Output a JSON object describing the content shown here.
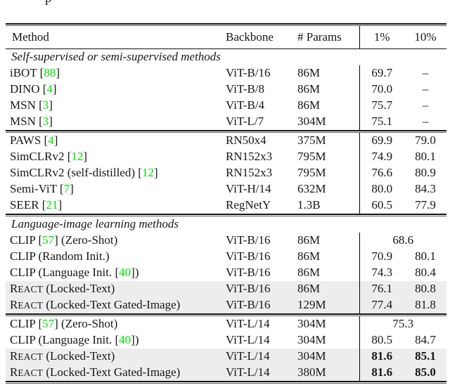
{
  "page": {
    "cropped_caption_fragment": "p"
  },
  "table": {
    "header": {
      "method": "Method",
      "backbone": "Backbone",
      "params": "# Params",
      "p1": "1%",
      "p10": "10%"
    },
    "accent_green": "#00e000",
    "highlight_bg": "#ededed",
    "blocks": [
      {
        "type": "label",
        "text": "Self-supervised or semi-supervised methods"
      },
      {
        "type": "row",
        "method": [
          {
            "t": "iBOT ["
          },
          {
            "t": "88",
            "k": "cite"
          },
          {
            "t": "]"
          }
        ],
        "backbone": "ViT-B/16",
        "params": "86M",
        "p1": "69.7",
        "p10": "–"
      },
      {
        "type": "row",
        "method": [
          {
            "t": "DINO ["
          },
          {
            "t": "4",
            "k": "cite"
          },
          {
            "t": "]"
          }
        ],
        "backbone": "ViT-B/8",
        "params": "86M",
        "p1": "70.0",
        "p10": "–"
      },
      {
        "type": "row",
        "method": [
          {
            "t": "MSN ["
          },
          {
            "t": "3",
            "k": "cite"
          },
          {
            "t": "]"
          }
        ],
        "backbone": "ViT-B/4",
        "params": "86M",
        "p1": "75.7",
        "p10": "–"
      },
      {
        "type": "row",
        "method": [
          {
            "t": "MSN ["
          },
          {
            "t": "3",
            "k": "cite"
          },
          {
            "t": "]"
          }
        ],
        "backbone": "ViT-L/7",
        "params": "304M",
        "p1": "75.1",
        "p10": "–"
      },
      {
        "type": "rule"
      },
      {
        "type": "row",
        "method": [
          {
            "t": "PAWS ["
          },
          {
            "t": "4",
            "k": "cite"
          },
          {
            "t": "]"
          }
        ],
        "backbone": "RN50x4",
        "params": "375M",
        "p1": "69.9",
        "p10": "79.0"
      },
      {
        "type": "row",
        "method": [
          {
            "t": "SimCLRv2 ["
          },
          {
            "t": "12",
            "k": "cite"
          },
          {
            "t": "]"
          }
        ],
        "backbone": "RN152x3",
        "params": "795M",
        "p1": "74.9",
        "p10": "80.1"
      },
      {
        "type": "row",
        "method": [
          {
            "t": "SimCLRv2 (self-distilled) ["
          },
          {
            "t": "12",
            "k": "cite"
          },
          {
            "t": "]"
          }
        ],
        "backbone": "RN152x3",
        "params": "795M",
        "p1": "76.6",
        "p10": "80.9"
      },
      {
        "type": "row",
        "method": [
          {
            "t": "Semi-ViT ["
          },
          {
            "t": "7",
            "k": "cite"
          },
          {
            "t": "]"
          }
        ],
        "backbone": "ViT-H/14",
        "params": "632M",
        "p1": "80.0",
        "p10": "84.3"
      },
      {
        "type": "row",
        "method": [
          {
            "t": "SEER ["
          },
          {
            "t": "21",
            "k": "cite"
          },
          {
            "t": "]"
          }
        ],
        "backbone": "RegNetY",
        "params": "1.3B",
        "p1": "60.5",
        "p10": "77.9"
      },
      {
        "type": "rule"
      },
      {
        "type": "label",
        "text": "Language-image learning methods"
      },
      {
        "type": "row",
        "merged": true,
        "method": [
          {
            "t": "CLIP ["
          },
          {
            "t": "57",
            "k": "cite"
          },
          {
            "t": "] (Zero-Shot)"
          }
        ],
        "backbone": "ViT-B/16",
        "params": "86M",
        "value": "68.6"
      },
      {
        "type": "row",
        "method": [
          {
            "t": "CLIP (Random Init.)"
          }
        ],
        "backbone": "ViT-B/16",
        "params": "86M",
        "p1": "70.9",
        "p10": "80.1"
      },
      {
        "type": "row",
        "method": [
          {
            "t": "CLIP (Language Init. ["
          },
          {
            "t": "40",
            "k": "cite"
          },
          {
            "t": "])"
          }
        ],
        "backbone": "ViT-B/16",
        "params": "86M",
        "p1": "74.3",
        "p10": "80.4"
      },
      {
        "type": "row",
        "hl": true,
        "method": [
          {
            "t": "R"
          },
          {
            "t": "EACT",
            "k": "sc"
          },
          {
            "t": " (Locked-Text)"
          }
        ],
        "backbone": "ViT-B/16",
        "params": "86M",
        "p1": "76.1",
        "p10": "80.8"
      },
      {
        "type": "row",
        "hl": true,
        "method": [
          {
            "t": "R"
          },
          {
            "t": "EACT",
            "k": "sc"
          },
          {
            "t": " (Locked-Text Gated-Image)"
          }
        ],
        "backbone": "ViT-B/16",
        "params": "129M",
        "p1": "77.4",
        "p10": "81.8"
      },
      {
        "type": "rule"
      },
      {
        "type": "row",
        "merged": true,
        "method": [
          {
            "t": "CLIP ["
          },
          {
            "t": "57",
            "k": "cite"
          },
          {
            "t": "] (Zero-Shot)"
          }
        ],
        "backbone": "ViT-L/14",
        "params": "304M",
        "value": "75.3"
      },
      {
        "type": "row",
        "method": [
          {
            "t": "CLIP (Language Init. ["
          },
          {
            "t": "40",
            "k": "cite"
          },
          {
            "t": "])"
          }
        ],
        "backbone": "ViT-L/14",
        "params": "304M",
        "p1": "80.5",
        "p10": "84.7"
      },
      {
        "type": "row",
        "hl": true,
        "bold": true,
        "method": [
          {
            "t": "R"
          },
          {
            "t": "EACT",
            "k": "sc"
          },
          {
            "t": " (Locked-Text)"
          }
        ],
        "backbone": "ViT-L/14",
        "params": "304M",
        "p1": "81.6",
        "p10": "85.1"
      },
      {
        "type": "row",
        "hl": true,
        "bold": true,
        "method": [
          {
            "t": "R"
          },
          {
            "t": "EACT",
            "k": "sc"
          },
          {
            "t": " (Locked-Text Gated-Image)"
          }
        ],
        "backbone": "ViT-L/14",
        "params": "380M",
        "p1": "81.6",
        "p10": "85.0"
      }
    ]
  }
}
